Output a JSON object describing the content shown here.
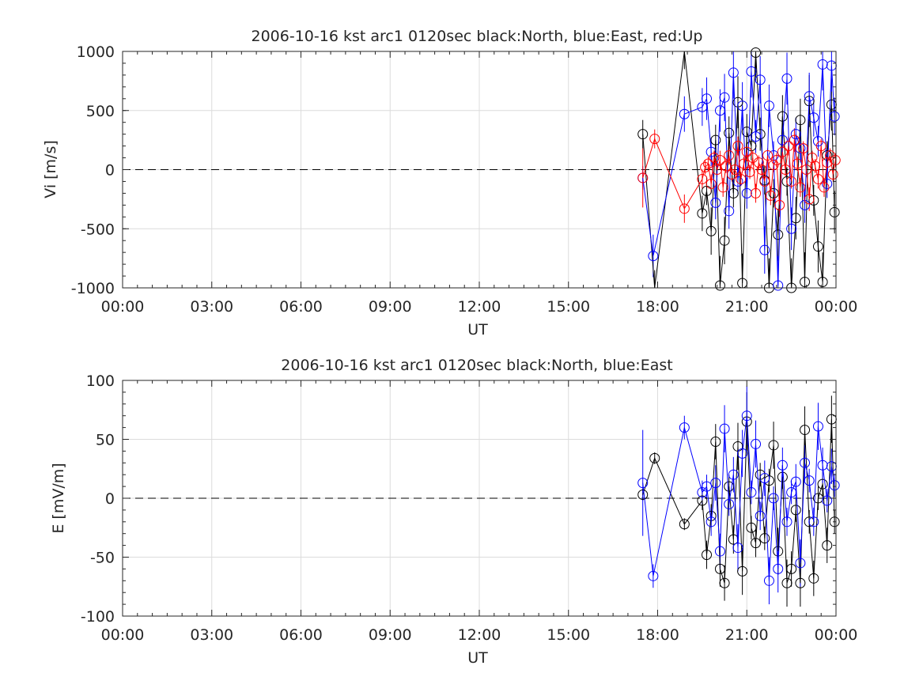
{
  "figure": {
    "colors": {
      "north": "#000000",
      "east": "#0000ff",
      "up": "#ff0000",
      "grid": "#dcdcdc",
      "axis": "#262626",
      "zero_line": "#000000"
    }
  },
  "chart_data": [
    {
      "type": "scatter",
      "title": "2006-10-16 kst arc1 0120sec black:North, blue:East, red:Up",
      "xlabel": "UT",
      "ylabel": "Vi [m/s]",
      "xlim": [
        0,
        24
      ],
      "ylim": [
        -1000,
        1000
      ],
      "x_ticks": [
        "00:00",
        "03:00",
        "06:00",
        "09:00",
        "12:00",
        "15:00",
        "18:00",
        "21:00",
        "00:00"
      ],
      "y_ticks": [
        "-1000",
        "-500",
        "0",
        "500",
        "1000"
      ],
      "grid": true,
      "zero_line": "dashed",
      "series": [
        {
          "name": "North",
          "color": "#000000",
          "x": [
            17.5,
            17.9,
            18.9,
            19.5,
            19.65,
            19.8,
            19.95,
            20.1,
            20.25,
            20.4,
            20.55,
            20.7,
            20.85,
            21.0,
            21.15,
            21.3,
            21.45,
            21.6,
            21.75,
            21.9,
            22.05,
            22.2,
            22.35,
            22.5,
            22.65,
            22.8,
            22.95,
            23.1,
            23.25,
            23.4,
            23.55,
            23.7,
            23.85,
            23.95
          ],
          "y": [
            300,
            -1050,
            1050,
            -370,
            -180,
            -520,
            250,
            -980,
            -600,
            310,
            -200,
            570,
            -960,
            320,
            200,
            990,
            300,
            -90,
            -1000,
            -200,
            -550,
            450,
            -100,
            -1000,
            -410,
            420,
            -950,
            580,
            -260,
            -650,
            -950,
            120,
            550,
            -360
          ],
          "err": [
            120,
            200,
            200,
            150,
            120,
            200,
            130,
            250,
            200,
            140,
            120,
            220,
            250,
            150,
            120,
            250,
            140,
            120,
            250,
            120,
            220,
            180,
            120,
            250,
            180,
            180,
            250,
            220,
            130,
            220,
            250,
            120,
            220,
            180
          ]
        },
        {
          "name": "East",
          "color": "#0000ff",
          "x": [
            17.5,
            17.85,
            18.9,
            19.5,
            19.65,
            19.8,
            19.95,
            20.1,
            20.25,
            20.4,
            20.55,
            20.7,
            20.85,
            21.0,
            21.15,
            21.3,
            21.45,
            21.6,
            21.75,
            21.9,
            22.05,
            22.2,
            22.35,
            22.5,
            22.65,
            22.8,
            22.95,
            23.1,
            23.25,
            23.4,
            23.55,
            23.7,
            23.85,
            23.95
          ],
          "y": [
            -70,
            -730,
            470,
            530,
            600,
            150,
            -280,
            500,
            610,
            -350,
            820,
            -100,
            540,
            -200,
            830,
            280,
            760,
            -680,
            540,
            120,
            -980,
            250,
            770,
            -500,
            300,
            180,
            -300,
            620,
            440,
            240,
            890,
            -120,
            880,
            450
          ],
          "err": [
            100,
            180,
            150,
            160,
            180,
            120,
            140,
            180,
            200,
            150,
            220,
            120,
            200,
            130,
            220,
            140,
            200,
            200,
            180,
            120,
            250,
            140,
            220,
            180,
            140,
            120,
            150,
            200,
            160,
            130,
            220,
            120,
            220,
            160
          ]
        },
        {
          "name": "Up",
          "color": "#ff0000",
          "x": [
            17.5,
            17.9,
            18.9,
            19.5,
            19.6,
            19.7,
            19.8,
            19.9,
            20.0,
            20.1,
            20.2,
            20.3,
            20.4,
            20.5,
            20.6,
            20.7,
            20.8,
            20.9,
            21.0,
            21.1,
            21.2,
            21.3,
            21.4,
            21.5,
            21.6,
            21.7,
            21.8,
            21.9,
            22.0,
            22.1,
            22.2,
            22.3,
            22.4,
            22.5,
            22.6,
            22.7,
            22.8,
            22.9,
            23.0,
            23.1,
            23.2,
            23.3,
            23.4,
            23.5,
            23.6,
            23.7,
            23.8,
            23.9,
            23.98
          ],
          "y": [
            -70,
            260,
            -330,
            -80,
            20,
            50,
            -120,
            100,
            0,
            80,
            -150,
            30,
            120,
            -40,
            0,
            200,
            -80,
            50,
            150,
            -20,
            100,
            -200,
            60,
            0,
            -100,
            120,
            -220,
            40,
            80,
            -300,
            150,
            0,
            200,
            -100,
            250,
            50,
            -150,
            180,
            0,
            -250,
            100,
            30,
            -80,
            200,
            -150,
            60,
            120,
            -40,
            80
          ],
          "err": [
            250,
            80,
            120,
            80,
            60,
            60,
            80,
            60,
            60,
            80,
            80,
            60,
            80,
            60,
            60,
            80,
            60,
            60,
            80,
            60,
            60,
            80,
            60,
            60,
            80,
            60,
            80,
            60,
            60,
            100,
            60,
            60,
            80,
            60,
            100,
            60,
            80,
            60,
            60,
            100,
            60,
            60,
            80,
            60,
            80,
            60,
            60,
            60,
            60
          ]
        }
      ]
    },
    {
      "type": "scatter",
      "title": "2006-10-16 kst arc1 0120sec black:North, blue:East",
      "xlabel": "UT",
      "ylabel": "E [mV/m]",
      "xlim": [
        0,
        24
      ],
      "ylim": [
        -100,
        100
      ],
      "x_ticks": [
        "00:00",
        "03:00",
        "06:00",
        "09:00",
        "12:00",
        "15:00",
        "18:00",
        "21:00",
        "00:00"
      ],
      "y_ticks": [
        "-100",
        "-50",
        "0",
        "50",
        "100"
      ],
      "grid": true,
      "zero_line": "dashed",
      "series": [
        {
          "name": "North",
          "color": "#000000",
          "x": [
            17.5,
            17.9,
            18.9,
            19.5,
            19.65,
            19.8,
            19.95,
            20.1,
            20.25,
            20.4,
            20.55,
            20.7,
            20.85,
            21.0,
            21.15,
            21.3,
            21.45,
            21.6,
            21.75,
            21.9,
            22.05,
            22.2,
            22.35,
            22.5,
            22.65,
            22.8,
            22.95,
            23.1,
            23.25,
            23.4,
            23.55,
            23.7,
            23.85,
            23.95
          ],
          "y": [
            3,
            34,
            -22,
            -2,
            -48,
            -15,
            48,
            -60,
            -72,
            10,
            -35,
            44,
            -62,
            65,
            -25,
            -38,
            20,
            -34,
            15,
            45,
            -45,
            18,
            -72,
            -60,
            -10,
            -72,
            58,
            -20,
            -68,
            0,
            12,
            -40,
            67,
            -20
          ],
          "err": [
            5,
            5,
            5,
            8,
            12,
            10,
            15,
            15,
            15,
            10,
            12,
            20,
            20,
            25,
            10,
            12,
            10,
            10,
            10,
            20,
            20,
            10,
            20,
            15,
            10,
            20,
            20,
            10,
            15,
            10,
            10,
            15,
            20,
            10
          ]
        },
        {
          "name": "East",
          "color": "#0000ff",
          "x": [
            17.5,
            17.85,
            18.9,
            19.5,
            19.65,
            19.8,
            19.95,
            20.1,
            20.25,
            20.4,
            20.55,
            20.7,
            20.85,
            21.0,
            21.15,
            21.3,
            21.45,
            21.6,
            21.75,
            21.9,
            22.05,
            22.2,
            22.35,
            22.5,
            22.65,
            22.8,
            22.95,
            23.1,
            23.25,
            23.4,
            23.55,
            23.7,
            23.85,
            23.95
          ],
          "y": [
            13,
            -66,
            60,
            5,
            10,
            -20,
            13,
            -45,
            59,
            -5,
            20,
            -42,
            38,
            70,
            5,
            46,
            -15,
            17,
            -70,
            0,
            -60,
            28,
            -20,
            5,
            14,
            -55,
            30,
            15,
            -20,
            61,
            28,
            -2,
            27,
            11
          ],
          "err": [
            45,
            10,
            10,
            10,
            10,
            12,
            15,
            15,
            20,
            10,
            15,
            20,
            20,
            25,
            10,
            20,
            12,
            15,
            20,
            10,
            20,
            15,
            12,
            10,
            15,
            20,
            15,
            10,
            12,
            20,
            15,
            10,
            15,
            10
          ]
        }
      ]
    }
  ]
}
